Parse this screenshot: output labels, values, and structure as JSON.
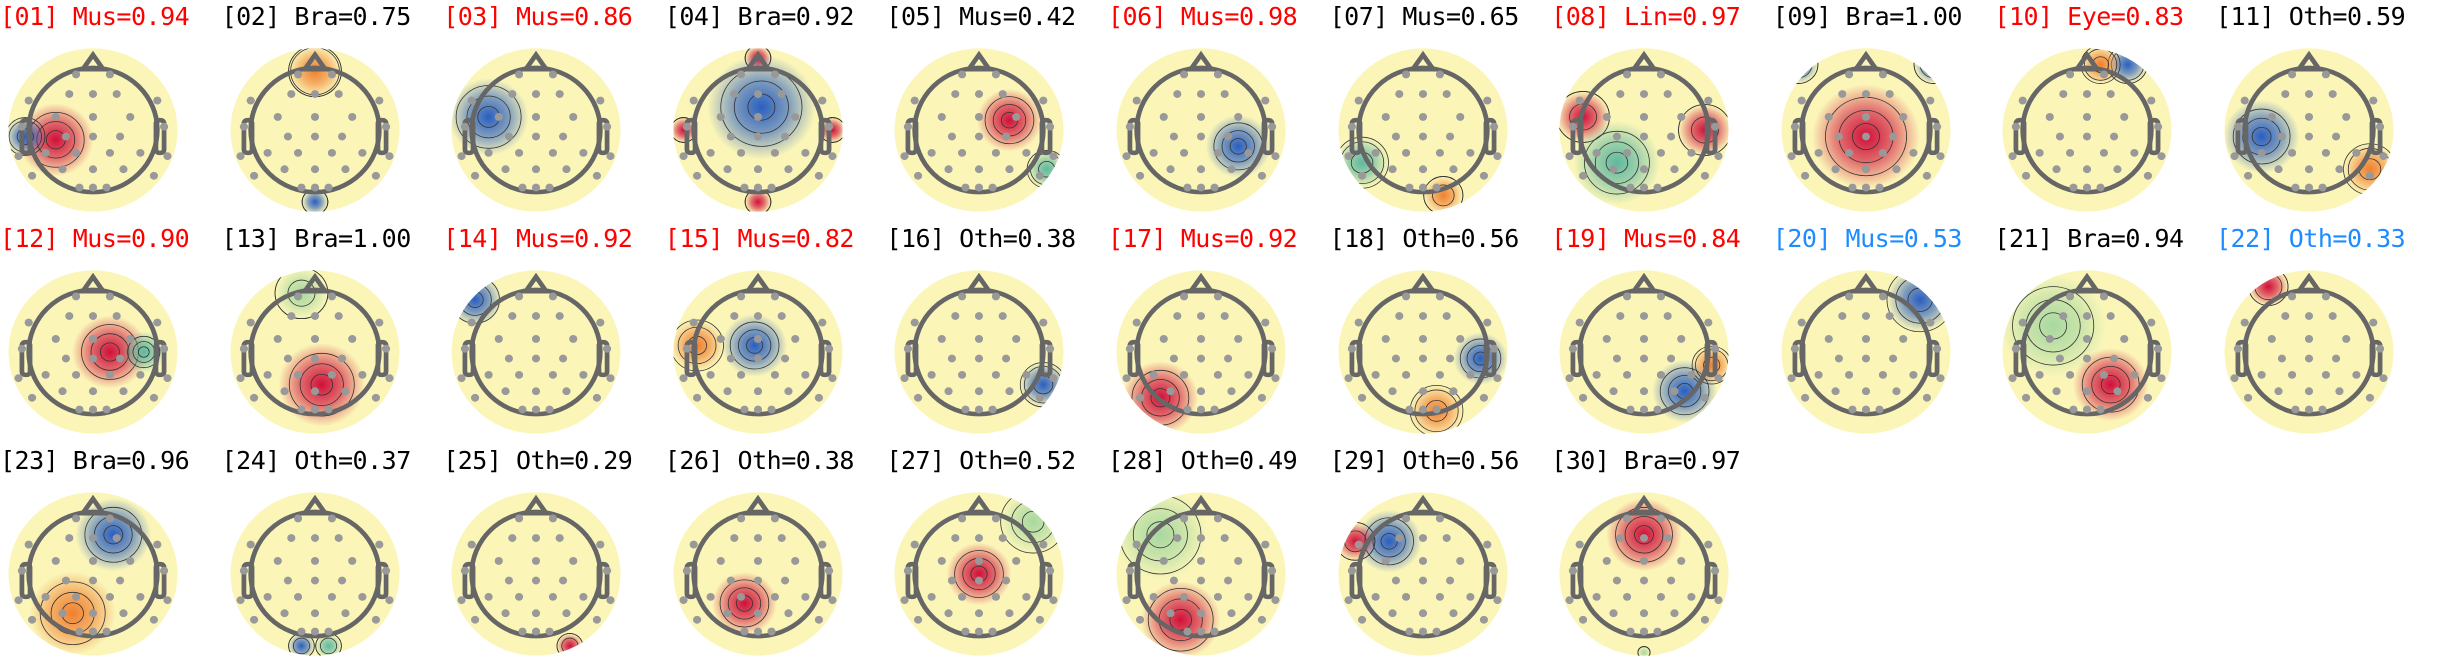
{
  "class_colors": {
    "flagged": "#ff0000",
    "uncertain": "#1e8cff",
    "kept": "#000000"
  },
  "components": [
    {
      "label": "[01] Mus=0.94",
      "status": "flagged"
    },
    {
      "label": "[02] Bra=0.75",
      "status": "kept"
    },
    {
      "label": "[03] Mus=0.86",
      "status": "flagged"
    },
    {
      "label": "[04] Bra=0.92",
      "status": "kept"
    },
    {
      "label": "[05] Mus=0.42",
      "status": "kept"
    },
    {
      "label": "[06] Mus=0.98",
      "status": "flagged"
    },
    {
      "label": "[07] Mus=0.65",
      "status": "kept"
    },
    {
      "label": "[08] Lin=0.97",
      "status": "flagged"
    },
    {
      "label": "[09] Bra=1.00",
      "status": "kept"
    },
    {
      "label": "[10] Eye=0.83",
      "status": "flagged"
    },
    {
      "label": "[11] Oth=0.59",
      "status": "kept"
    },
    {
      "label": "[12] Mus=0.90",
      "status": "flagged"
    },
    {
      "label": "[13] Bra=1.00",
      "status": "kept"
    },
    {
      "label": "[14] Mus=0.92",
      "status": "flagged"
    },
    {
      "label": "[15] Mus=0.82",
      "status": "flagged"
    },
    {
      "label": "[16] Oth=0.38",
      "status": "kept"
    },
    {
      "label": "[17] Mus=0.92",
      "status": "flagged"
    },
    {
      "label": "[18] Oth=0.56",
      "status": "kept"
    },
    {
      "label": "[19] Mus=0.84",
      "status": "flagged"
    },
    {
      "label": "[20] Mus=0.53",
      "status": "uncertain"
    },
    {
      "label": "[21] Bra=0.94",
      "status": "kept"
    },
    {
      "label": "[22] Oth=0.33",
      "status": "uncertain"
    },
    {
      "label": "[23] Bra=0.96",
      "status": "kept"
    },
    {
      "label": "[24] Oth=0.37",
      "status": "kept"
    },
    {
      "label": "[25] Oth=0.29",
      "status": "kept"
    },
    {
      "label": "[26] Oth=0.38",
      "status": "kept"
    },
    {
      "label": "[27] Oth=0.52",
      "status": "kept"
    },
    {
      "label": "[28] Oth=0.49",
      "status": "kept"
    },
    {
      "label": "[29] Oth=0.56",
      "status": "kept"
    },
    {
      "label": "[30] Bra=0.97",
      "status": "kept"
    }
  ]
}
